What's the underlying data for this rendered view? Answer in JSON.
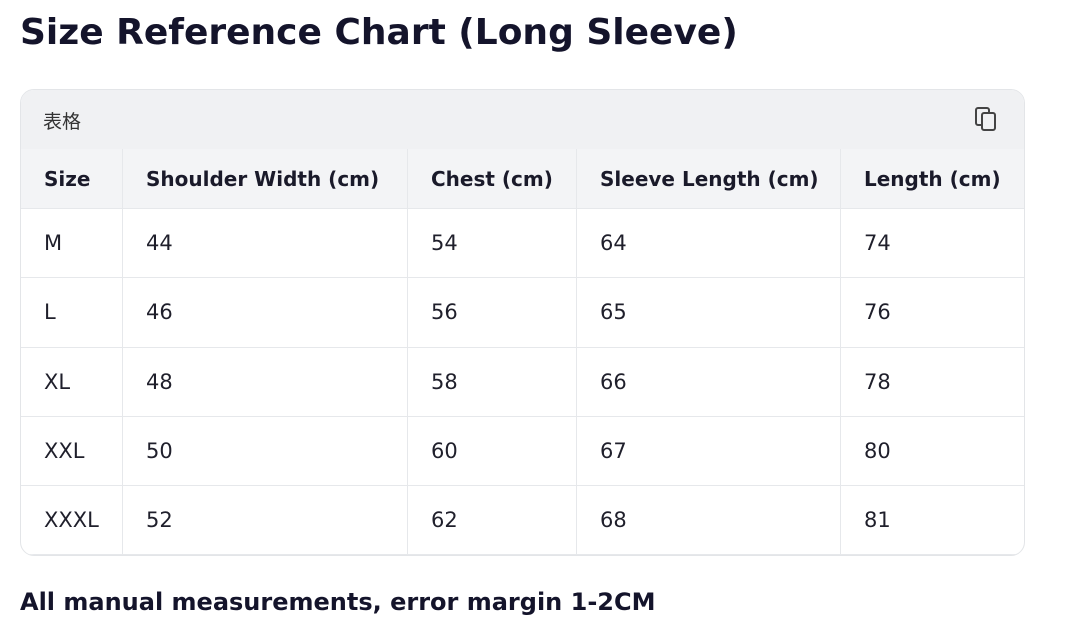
{
  "title": "Size Reference Chart (Long Sleeve)",
  "table": {
    "label": "表格",
    "headers": [
      "Size",
      "Shoulder Width (cm)",
      "Chest (cm)",
      "Sleeve Length (cm)",
      "Length (cm)"
    ],
    "rows": [
      [
        "M",
        44,
        54,
        64,
        74
      ],
      [
        "L",
        46,
        56,
        65,
        76
      ],
      [
        "XL",
        48,
        58,
        66,
        78
      ],
      [
        "XXL",
        50,
        60,
        67,
        80
      ],
      [
        "XXXL",
        52,
        62,
        68,
        81
      ]
    ]
  },
  "note": "All manual measurements, error margin 1-2CM"
}
